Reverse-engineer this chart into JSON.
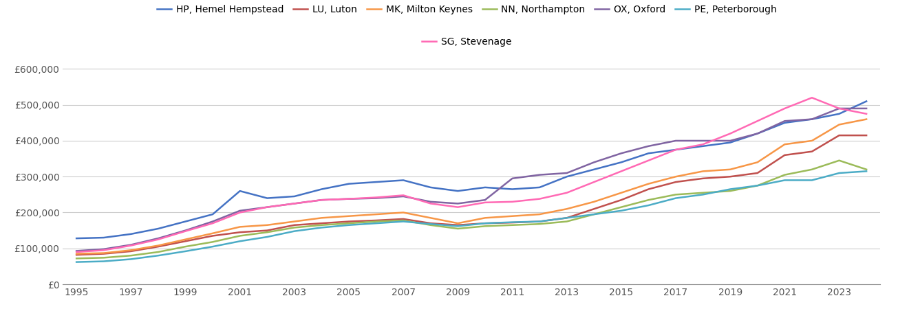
{
  "series": {
    "HP, Hemel Hempstead": {
      "color": "#4472C4",
      "years": [
        1995,
        1996,
        1997,
        1998,
        1999,
        2000,
        2001,
        2002,
        2003,
        2004,
        2005,
        2006,
        2007,
        2008,
        2009,
        2010,
        2011,
        2012,
        2013,
        2014,
        2015,
        2016,
        2017,
        2018,
        2019,
        2020,
        2021,
        2022,
        2023,
        2024
      ],
      "values": [
        128000,
        130000,
        140000,
        155000,
        175000,
        195000,
        260000,
        240000,
        245000,
        265000,
        280000,
        285000,
        290000,
        270000,
        260000,
        270000,
        265000,
        270000,
        300000,
        320000,
        340000,
        365000,
        375000,
        385000,
        395000,
        420000,
        450000,
        460000,
        475000,
        510000
      ]
    },
    "LU, Luton": {
      "color": "#C0504D",
      "years": [
        1995,
        1996,
        1997,
        1998,
        1999,
        2000,
        2001,
        2002,
        2003,
        2004,
        2005,
        2006,
        2007,
        2008,
        2009,
        2010,
        2011,
        2012,
        2013,
        2014,
        2015,
        2016,
        2017,
        2018,
        2019,
        2020,
        2021,
        2022,
        2023,
        2024
      ],
      "values": [
        82000,
        85000,
        92000,
        105000,
        120000,
        135000,
        145000,
        150000,
        165000,
        170000,
        175000,
        178000,
        182000,
        170000,
        165000,
        170000,
        172000,
        175000,
        185000,
        210000,
        235000,
        265000,
        285000,
        295000,
        300000,
        310000,
        360000,
        370000,
        415000,
        415000
      ]
    },
    "MK, Milton Keynes": {
      "color": "#F79646",
      "years": [
        1995,
        1996,
        1997,
        1998,
        1999,
        2000,
        2001,
        2002,
        2003,
        2004,
        2005,
        2006,
        2007,
        2008,
        2009,
        2010,
        2011,
        2012,
        2013,
        2014,
        2015,
        2016,
        2017,
        2018,
        2019,
        2020,
        2021,
        2022,
        2023,
        2024
      ],
      "values": [
        85000,
        87000,
        95000,
        108000,
        125000,
        142000,
        160000,
        165000,
        175000,
        185000,
        190000,
        195000,
        200000,
        185000,
        170000,
        185000,
        190000,
        195000,
        210000,
        230000,
        255000,
        280000,
        300000,
        315000,
        320000,
        340000,
        390000,
        400000,
        445000,
        460000
      ]
    },
    "NN, Northampton": {
      "color": "#9BBB59",
      "years": [
        1995,
        1996,
        1997,
        1998,
        1999,
        2000,
        2001,
        2002,
        2003,
        2004,
        2005,
        2006,
        2007,
        2008,
        2009,
        2010,
        2011,
        2012,
        2013,
        2014,
        2015,
        2016,
        2017,
        2018,
        2019,
        2020,
        2021,
        2022,
        2023,
        2024
      ],
      "values": [
        72000,
        74000,
        80000,
        90000,
        105000,
        118000,
        135000,
        145000,
        158000,
        165000,
        170000,
        175000,
        178000,
        165000,
        155000,
        162000,
        165000,
        168000,
        175000,
        195000,
        215000,
        235000,
        250000,
        255000,
        260000,
        275000,
        305000,
        320000,
        345000,
        320000
      ]
    },
    "OX, Oxford": {
      "color": "#8064A2",
      "years": [
        1995,
        1996,
        1997,
        1998,
        1999,
        2000,
        2001,
        2002,
        2003,
        2004,
        2005,
        2006,
        2007,
        2008,
        2009,
        2010,
        2011,
        2012,
        2013,
        2014,
        2015,
        2016,
        2017,
        2018,
        2019,
        2020,
        2021,
        2022,
        2023,
        2024
      ],
      "values": [
        93000,
        98000,
        110000,
        128000,
        150000,
        175000,
        205000,
        215000,
        225000,
        235000,
        238000,
        240000,
        245000,
        230000,
        225000,
        235000,
        295000,
        305000,
        310000,
        340000,
        365000,
        385000,
        400000,
        400000,
        400000,
        420000,
        455000,
        460000,
        490000,
        490000
      ]
    },
    "PE, Peterborough": {
      "color": "#4BACC6",
      "years": [
        1995,
        1996,
        1997,
        1998,
        1999,
        2000,
        2001,
        2002,
        2003,
        2004,
        2005,
        2006,
        2007,
        2008,
        2009,
        2010,
        2011,
        2012,
        2013,
        2014,
        2015,
        2016,
        2017,
        2018,
        2019,
        2020,
        2021,
        2022,
        2023,
        2024
      ],
      "values": [
        62000,
        64000,
        70000,
        80000,
        92000,
        105000,
        120000,
        132000,
        148000,
        158000,
        165000,
        170000,
        175000,
        168000,
        162000,
        170000,
        173000,
        175000,
        185000,
        195000,
        205000,
        220000,
        240000,
        250000,
        265000,
        275000,
        290000,
        290000,
        310000,
        315000
      ]
    },
    "SG, Stevenage": {
      "color": "#FF69B4",
      "years": [
        1995,
        1996,
        1997,
        1998,
        1999,
        2000,
        2001,
        2002,
        2003,
        2004,
        2005,
        2006,
        2007,
        2008,
        2009,
        2010,
        2011,
        2012,
        2013,
        2014,
        2015,
        2016,
        2017,
        2018,
        2019,
        2020,
        2021,
        2022,
        2023,
        2024
      ],
      "values": [
        90000,
        95000,
        108000,
        125000,
        148000,
        170000,
        200000,
        215000,
        225000,
        235000,
        238000,
        242000,
        248000,
        225000,
        215000,
        228000,
        230000,
        238000,
        255000,
        285000,
        315000,
        345000,
        375000,
        390000,
        420000,
        455000,
        490000,
        520000,
        490000,
        475000
      ]
    }
  },
  "ylim": [
    0,
    620000
  ],
  "yticks": [
    0,
    100000,
    200000,
    300000,
    400000,
    500000,
    600000
  ],
  "ytick_labels": [
    "£0",
    "£100,000",
    "£200,000",
    "£300,000",
    "£400,000",
    "£500,000",
    "£600,000"
  ],
  "xtick_years": [
    1995,
    1997,
    1999,
    2001,
    2003,
    2005,
    2007,
    2009,
    2011,
    2013,
    2015,
    2017,
    2019,
    2021,
    2023
  ],
  "legend_order": [
    "HP, Hemel Hempstead",
    "LU, Luton",
    "MK, Milton Keynes",
    "NN, Northampton",
    "OX, Oxford",
    "PE, Peterborough",
    "SG, Stevenage"
  ],
  "background_color": "#ffffff",
  "grid_color": "#cccccc",
  "linewidth": 1.8,
  "figwidth": 13.05,
  "figheight": 4.5,
  "dpi": 100
}
